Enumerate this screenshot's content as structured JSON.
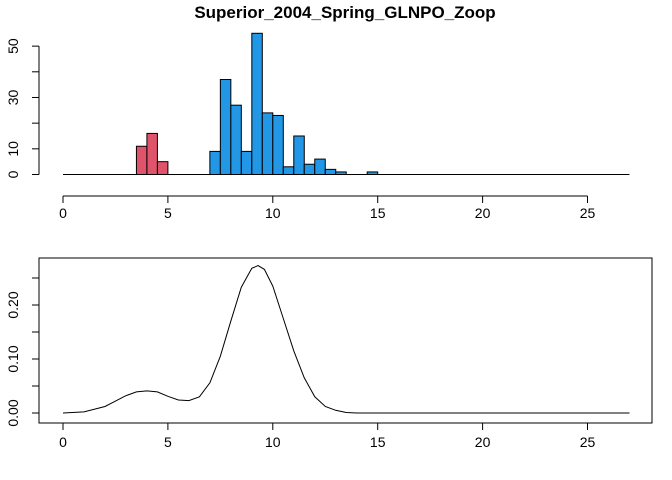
{
  "chart_data": [
    {
      "type": "bar",
      "title": "Superior_2004_Spring_GLNPO_Zoop",
      "xlabel": "",
      "ylabel": "",
      "xlim": [
        0,
        27
      ],
      "ylim": [
        0,
        55
      ],
      "xticks": [
        "0",
        "5",
        "10",
        "15",
        "20",
        "25"
      ],
      "yticks": [
        "0",
        "10",
        "30",
        "50"
      ],
      "bin_width": 0.5,
      "colors": {
        "red": "#DF536B",
        "blue": "#2297E6"
      },
      "bins": [
        {
          "x0": 3.5,
          "value": 11,
          "color": "red"
        },
        {
          "x0": 4.0,
          "value": 16,
          "color": "red"
        },
        {
          "x0": 4.5,
          "value": 5,
          "color": "red"
        },
        {
          "x0": 7.0,
          "value": 9,
          "color": "blue"
        },
        {
          "x0": 7.5,
          "value": 37,
          "color": "blue"
        },
        {
          "x0": 8.0,
          "value": 27,
          "color": "blue"
        },
        {
          "x0": 8.5,
          "value": 9,
          "color": "blue"
        },
        {
          "x0": 9.0,
          "value": 55,
          "color": "blue"
        },
        {
          "x0": 9.5,
          "value": 24,
          "color": "blue"
        },
        {
          "x0": 10.0,
          "value": 23,
          "color": "blue"
        },
        {
          "x0": 10.5,
          "value": 3,
          "color": "blue"
        },
        {
          "x0": 11.0,
          "value": 15,
          "color": "blue"
        },
        {
          "x0": 11.5,
          "value": 4,
          "color": "blue"
        },
        {
          "x0": 12.0,
          "value": 6,
          "color": "blue"
        },
        {
          "x0": 12.5,
          "value": 2,
          "color": "blue"
        },
        {
          "x0": 13.0,
          "value": 1,
          "color": "blue"
        },
        {
          "x0": 14.5,
          "value": 1,
          "color": "blue"
        }
      ]
    },
    {
      "type": "line",
      "title": "",
      "xlabel": "",
      "ylabel": "",
      "xlim": [
        0,
        27
      ],
      "ylim": [
        0,
        0.27
      ],
      "xticks": [
        "0",
        "5",
        "10",
        "15",
        "20",
        "25"
      ],
      "yticks": [
        "0.00",
        "0.10",
        "0.20"
      ],
      "x": [
        0,
        1,
        2,
        2.5,
        3,
        3.5,
        4,
        4.5,
        5,
        5.5,
        6,
        6.5,
        7,
        7.5,
        8,
        8.5,
        9,
        9.3,
        9.6,
        10,
        10.5,
        11,
        11.5,
        12,
        12.5,
        13,
        13.5,
        14,
        15,
        27
      ],
      "y": [
        0.0,
        0.002,
        0.012,
        0.022,
        0.032,
        0.039,
        0.041,
        0.039,
        0.031,
        0.024,
        0.023,
        0.03,
        0.056,
        0.105,
        0.17,
        0.233,
        0.268,
        0.273,
        0.266,
        0.235,
        0.175,
        0.115,
        0.065,
        0.03,
        0.012,
        0.005,
        0.001,
        0.0,
        0.0,
        0.0
      ]
    }
  ]
}
